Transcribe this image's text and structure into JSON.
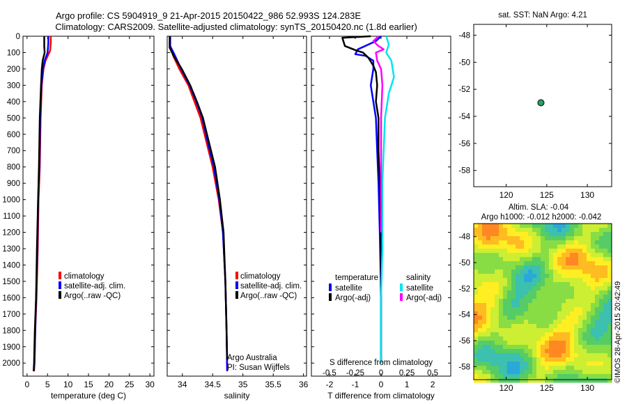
{
  "title": {
    "line1": "Argo profile: CS 5904919_9 21-Apr-2015 20150422_986 52.993S 124.283E",
    "line2": "Climatology: CARS2009. Satellite-adjusted climatology: synTS_20150420.nc (1.8d earlier)"
  },
  "watermark": "©IMOS 28-Apr-2015 20:42:49",
  "colors": {
    "climatology": "#ff0000",
    "satellite": "#0000ff",
    "argo": "#000000",
    "salinity_satellite": "#00e5ee",
    "salinity_argo": "#ff00ff",
    "marker": "#2f9d6a"
  },
  "chart_data": [
    {
      "type": "line",
      "name": "temperature",
      "xlabel": "temperature (deg C)",
      "ylabel": "",
      "xlim": [
        -1,
        31
      ],
      "ylim": [
        2080,
        0
      ],
      "xticks": [
        0,
        5,
        10,
        15,
        20,
        25,
        30
      ],
      "yticks": [
        0,
        100,
        200,
        300,
        400,
        500,
        600,
        700,
        800,
        900,
        1000,
        1100,
        1200,
        1300,
        1400,
        1500,
        1600,
        1700,
        1800,
        1900,
        2000
      ],
      "legend": [
        "climatology",
        "satellite-adj. clim.",
        "Argo(..raw -QC)"
      ],
      "series": [
        {
          "name": "climatology",
          "color": "red",
          "points": [
            [
              5.8,
              0
            ],
            [
              5.8,
              40
            ],
            [
              5.6,
              90
            ],
            [
              4.5,
              150
            ],
            [
              4.0,
              200
            ],
            [
              3.6,
              300
            ],
            [
              3.3,
              500
            ],
            [
              3.1,
              800
            ],
            [
              2.8,
              1000
            ],
            [
              2.6,
              1300
            ],
            [
              2.3,
              1600
            ],
            [
              2.0,
              1800
            ],
            [
              1.8,
              2000
            ],
            [
              1.7,
              2050
            ]
          ]
        },
        {
          "name": "satellite-adj. clim.",
          "color": "blue",
          "points": [
            [
              5.2,
              0
            ],
            [
              5.2,
              40
            ],
            [
              5.0,
              100
            ],
            [
              4.3,
              150
            ],
            [
              3.9,
              200
            ],
            [
              3.5,
              300
            ],
            [
              3.2,
              500
            ],
            [
              3.0,
              800
            ],
            [
              2.7,
              1000
            ],
            [
              2.5,
              1300
            ],
            [
              2.2,
              1600
            ],
            [
              2.0,
              1800
            ],
            [
              1.8,
              2000
            ],
            [
              1.6,
              2050
            ]
          ]
        },
        {
          "name": "Argo(..raw -QC)",
          "color": "black",
          "points": [
            [
              4.2,
              0
            ],
            [
              4.2,
              60
            ],
            [
              4.3,
              100
            ],
            [
              3.8,
              150
            ],
            [
              3.6,
              200
            ],
            [
              3.4,
              300
            ],
            [
              3.1,
              500
            ],
            [
              2.9,
              800
            ],
            [
              2.7,
              1000
            ],
            [
              2.4,
              1300
            ],
            [
              2.2,
              1600
            ],
            [
              1.9,
              1800
            ],
            [
              1.7,
              2000
            ],
            [
              1.6,
              2050
            ]
          ]
        }
      ]
    },
    {
      "type": "line",
      "name": "salinity",
      "xlabel": "salinity",
      "xlim": [
        33.75,
        36.05
      ],
      "ylim": [
        2080,
        0
      ],
      "xticks": [
        34,
        34.5,
        35,
        35.5,
        36
      ],
      "legend": [
        "climatology",
        "satellite-adj. clim.",
        "Argo(..raw -QC)"
      ],
      "annotation": [
        "Argo Australia",
        "PI: Susan Wijffels"
      ],
      "series": [
        {
          "name": "climatology",
          "color": "red",
          "points": [
            [
              33.8,
              0
            ],
            [
              33.8,
              60
            ],
            [
              33.85,
              120
            ],
            [
              33.95,
              200
            ],
            [
              34.1,
              300
            ],
            [
              34.2,
              400
            ],
            [
              34.3,
              500
            ],
            [
              34.4,
              650
            ],
            [
              34.5,
              800
            ],
            [
              34.6,
              1000
            ],
            [
              34.67,
              1200
            ],
            [
              34.71,
              1500
            ],
            [
              34.73,
              1800
            ],
            [
              34.74,
              2050
            ]
          ]
        },
        {
          "name": "satellite-adj. clim.",
          "color": "blue",
          "points": [
            [
              33.8,
              0
            ],
            [
              33.8,
              60
            ],
            [
              33.88,
              120
            ],
            [
              33.98,
              200
            ],
            [
              34.12,
              300
            ],
            [
              34.23,
              400
            ],
            [
              34.33,
              500
            ],
            [
              34.42,
              650
            ],
            [
              34.52,
              800
            ],
            [
              34.61,
              1000
            ],
            [
              34.67,
              1200
            ],
            [
              34.71,
              1500
            ],
            [
              34.73,
              1800
            ],
            [
              34.74,
              2050
            ]
          ]
        },
        {
          "name": "Argo(..raw -QC)",
          "color": "black",
          "points": [
            [
              33.79,
              0
            ],
            [
              33.79,
              70
            ],
            [
              33.87,
              130
            ],
            [
              33.99,
              200
            ],
            [
              34.13,
              300
            ],
            [
              34.24,
              400
            ],
            [
              34.34,
              500
            ],
            [
              34.44,
              650
            ],
            [
              34.54,
              800
            ],
            [
              34.62,
              1000
            ],
            [
              34.68,
              1200
            ],
            [
              34.71,
              1500
            ],
            [
              34.73,
              1800
            ],
            [
              34.74,
              1980
            ]
          ]
        }
      ]
    },
    {
      "type": "line",
      "name": "difference from climatology",
      "xlabel": "T difference from climatology",
      "top_label": "S difference from climatology",
      "xlim": [
        -2.7,
        2.7
      ],
      "ylim": [
        2080,
        0
      ],
      "xticks": [
        -2,
        -1,
        0,
        1,
        2
      ],
      "top_ticks": [
        "-0.5",
        "-0.25",
        "0",
        "0.25",
        "0.5"
      ],
      "top_tick_values": [
        -2,
        -1,
        0,
        1,
        2
      ],
      "legend_temperature": [
        "temperature",
        "satellite",
        "Argo(-adj)"
      ],
      "legend_salinity": [
        "salinity",
        "satellite",
        "Argo(-adj)"
      ],
      "series": [
        {
          "name": "temperature satellite",
          "color": "blue",
          "points": [
            [
              0,
              0
            ],
            [
              -0.2,
              30
            ],
            [
              -0.9,
              80
            ],
            [
              -1.0,
              110
            ],
            [
              -0.6,
              120
            ],
            [
              -0.3,
              150
            ],
            [
              -0.3,
              200
            ],
            [
              -0.4,
              300
            ],
            [
              -0.3,
              400
            ],
            [
              -0.2,
              500
            ],
            [
              -0.15,
              700
            ],
            [
              -0.1,
              900
            ],
            [
              -0.05,
              1200
            ],
            [
              0,
              1600
            ],
            [
              0,
              2000
            ]
          ]
        },
        {
          "name": "temperature Argo(-adj)",
          "color": "black",
          "points": [
            [
              -0.4,
              0
            ],
            [
              -1.5,
              10
            ],
            [
              -1.4,
              60
            ],
            [
              -1.0,
              85
            ],
            [
              -0.7,
              100
            ],
            [
              -0.5,
              130
            ],
            [
              -0.3,
              180
            ],
            [
              -0.2,
              220
            ],
            [
              -0.15,
              300
            ],
            [
              -0.2,
              400
            ],
            [
              -0.1,
              500
            ],
            [
              -0.1,
              700
            ],
            [
              -0.05,
              900
            ],
            [
              0,
              1200
            ],
            [
              0,
              1600
            ],
            [
              0,
              2000
            ]
          ]
        },
        {
          "name": "salinity satellite",
          "color": "cyan",
          "points": [
            [
              0.2,
              0
            ],
            [
              0.3,
              50
            ],
            [
              0.2,
              100
            ],
            [
              0.4,
              150
            ],
            [
              0.5,
              250
            ],
            [
              0.3,
              350
            ],
            [
              0.15,
              500
            ],
            [
              0.1,
              700
            ],
            [
              0.05,
              900
            ],
            [
              0.05,
              1100
            ],
            [
              0.05,
              1300
            ],
            [
              0,
              1600
            ],
            [
              0,
              2000
            ]
          ]
        },
        {
          "name": "salinity Argo(-adj)",
          "color": "magenta",
          "points": [
            [
              -0.1,
              0
            ],
            [
              -0.3,
              30
            ],
            [
              -0.1,
              60
            ],
            [
              0.1,
              80
            ],
            [
              -0.2,
              100
            ],
            [
              -0.15,
              150
            ],
            [
              0,
              200
            ],
            [
              0.05,
              300
            ],
            [
              0,
              500
            ],
            [
              0,
              800
            ],
            [
              0,
              1200
            ]
          ]
        }
      ]
    },
    {
      "type": "scatter",
      "name": "location",
      "title": "sat. SST: NaN Argo: 4.21",
      "xlim": [
        116,
        133
      ],
      "ylim": [
        -59.2,
        -47.2
      ],
      "xticks": [
        120,
        125,
        130
      ],
      "yticks": [
        -48,
        -50,
        -52,
        -54,
        -56,
        -58
      ],
      "points": [
        [
          124.283,
          -52.993
        ]
      ]
    },
    {
      "type": "heatmap",
      "name": "SLA",
      "title_line1": "Altim. SLA: -0.04",
      "title_line2": "Argo h1000: -0.012 h2000: -0.042",
      "xlim": [
        116,
        133
      ],
      "ylim": [
        -59,
        -47
      ],
      "xticks": [
        120,
        125,
        130
      ],
      "yticks": [
        -48,
        -50,
        -52,
        -54,
        -56,
        -58
      ]
    }
  ]
}
